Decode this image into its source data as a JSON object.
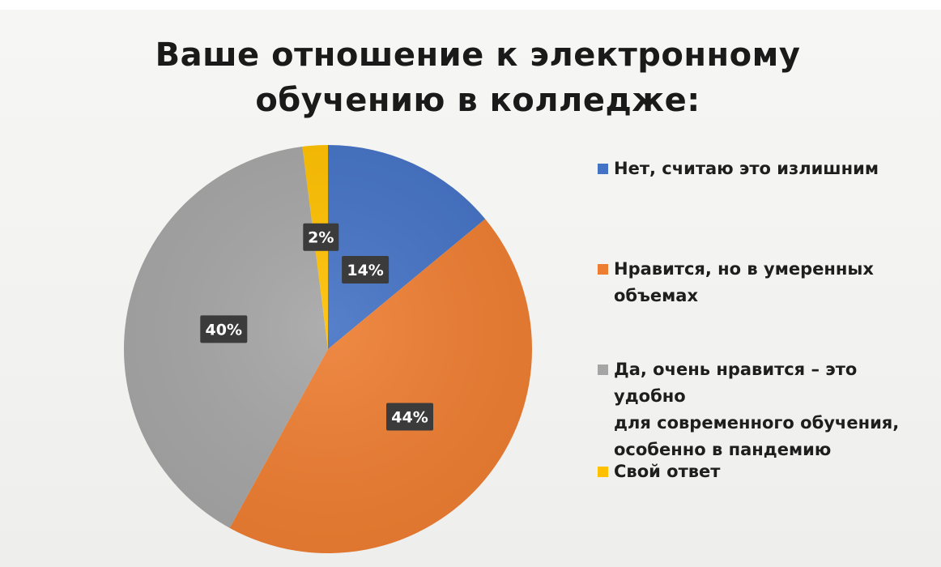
{
  "chart_data": {
    "type": "pie",
    "title": "Ваше отношение к электронному обучению в колледже:",
    "title_lines": [
      "Ваше отношение к электронному",
      "обучению в колледже:"
    ],
    "legend_position": "right",
    "slices": [
      {
        "label": "Нет, считаю это излишним",
        "value": 14,
        "display": "14%",
        "color": "#4472c4"
      },
      {
        "label": "Нравится, но в умеренных объемах",
        "value": 44,
        "display": "44%",
        "color": "#ed7d31"
      },
      {
        "label": "Да, очень нравится – это удобно для современного обучения, особенно в пандемию",
        "value": 40,
        "display": "40%",
        "color": "#a5a5a5"
      },
      {
        "label": "Свой ответ",
        "value": 2,
        "display": "2%",
        "color": "#ffc000"
      }
    ]
  },
  "legend": {
    "items": [
      {
        "lines": [
          "Нет, считаю это излишним"
        ]
      },
      {
        "lines": [
          "Нравится, но в умеренных",
          "объемах"
        ]
      },
      {
        "lines": [
          "Да, очень нравится – это удобно",
          "для современного обучения,",
          "особенно в пандемию"
        ]
      },
      {
        "lines": [
          "Свой ответ"
        ]
      }
    ]
  }
}
